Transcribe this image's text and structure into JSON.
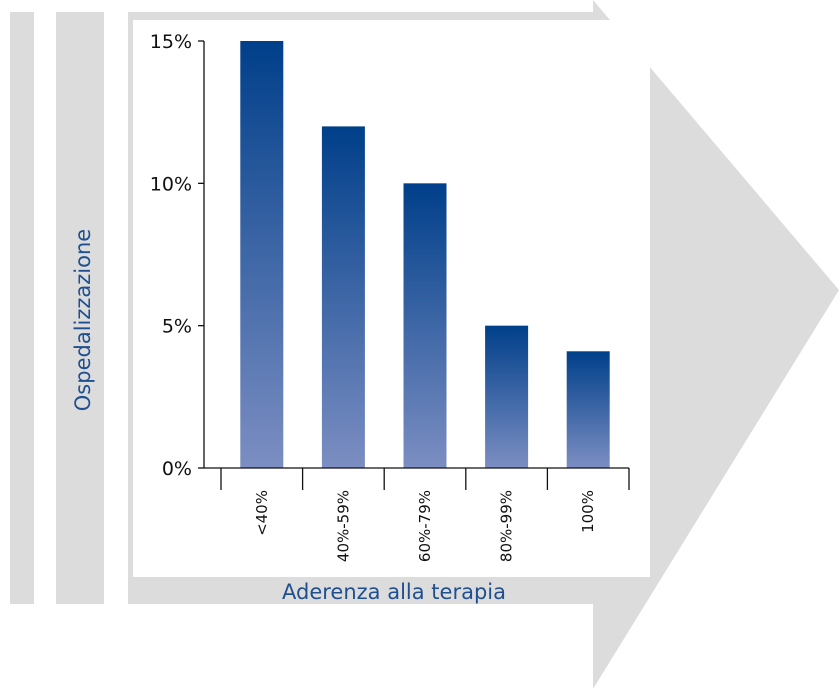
{
  "colors": {
    "background_shapes": "#dcdcdc",
    "bar_top": "#003f8a",
    "bar_bottom": "#7c8ec2",
    "axis_title": "#1f4f8f",
    "axis": "#111111"
  },
  "chart_data": {
    "type": "bar",
    "categories": [
      "<40%",
      "40%-59%",
      "60%-79%",
      "80%-99%",
      "100%"
    ],
    "values": [
      15,
      12,
      10,
      5,
      4.1
    ],
    "unit": "%",
    "xlabel": "Aderenza alla terapia",
    "ylabel": "Ospedalizzazione",
    "ylim": [
      0,
      15
    ],
    "yticks": [
      0,
      5,
      10,
      15
    ],
    "ytick_labels": [
      "0%",
      "5%",
      "10%",
      "15%"
    ],
    "grid": false,
    "legend": "none"
  }
}
